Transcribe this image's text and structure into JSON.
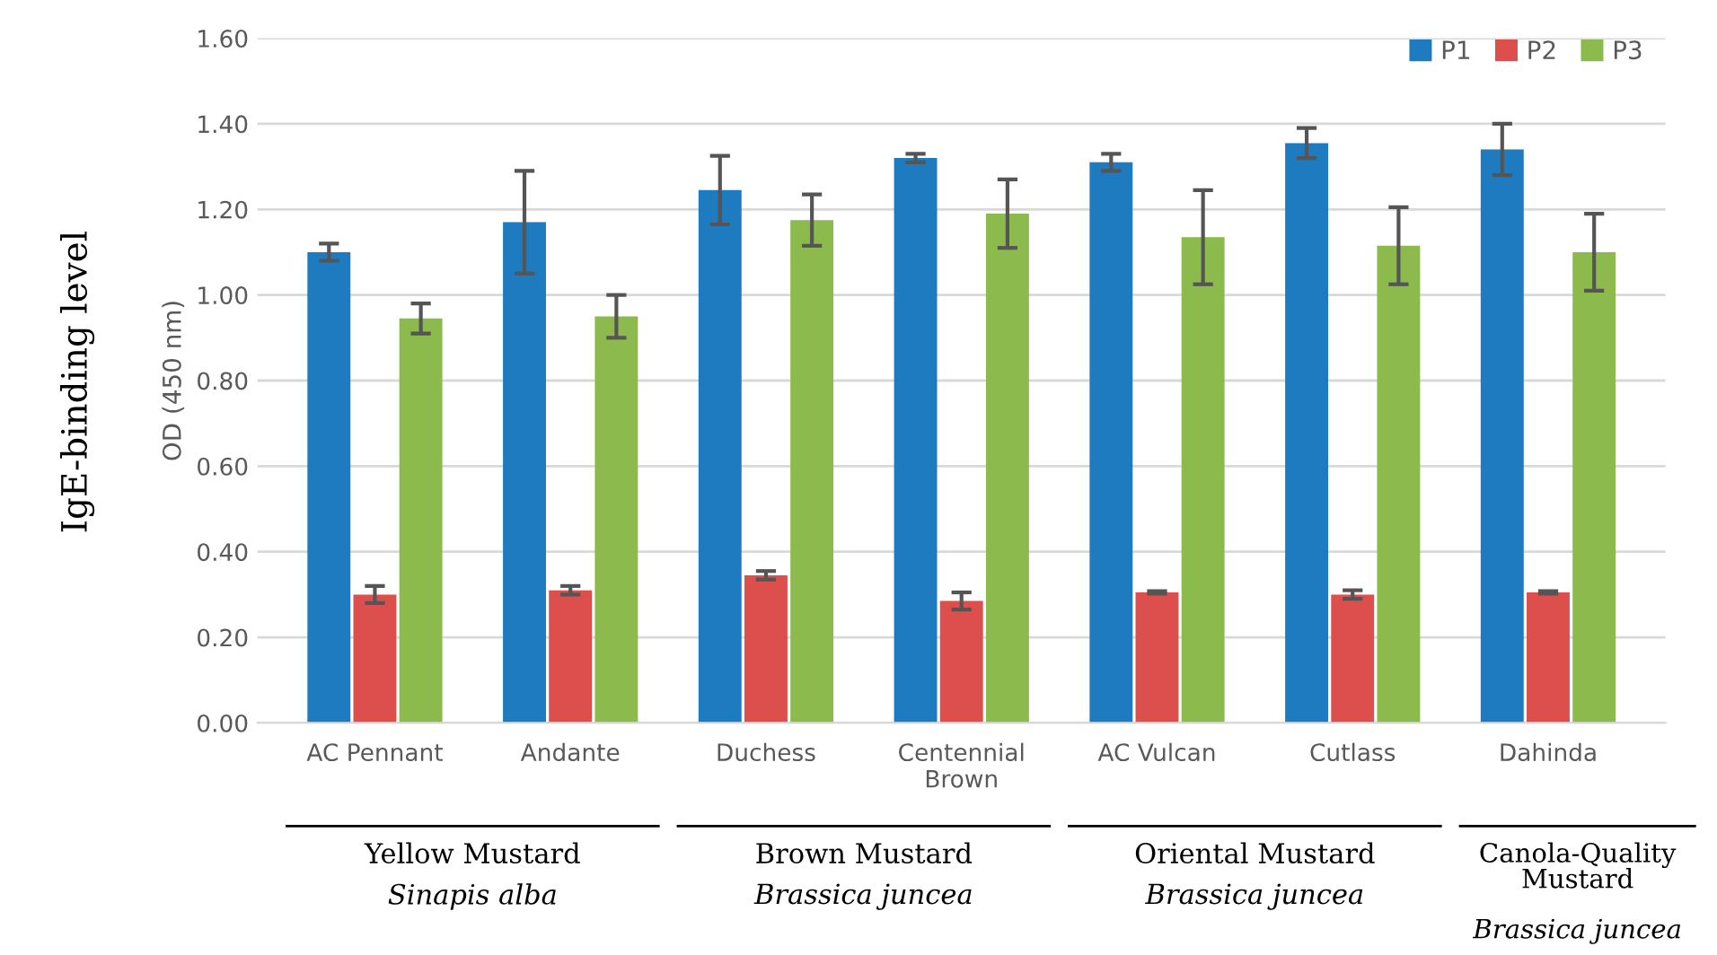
{
  "chart_data": {
    "type": "bar",
    "ylabel": "OD (450 nm)",
    "categories": [
      "AC Pennant",
      "Andante",
      "Duchess",
      "Centennial\nBrown",
      "AC Vulcan",
      "Cutlass",
      "Dahinda"
    ],
    "series": [
      {
        "name": "P1",
        "color": "#1f7bbf",
        "values": [
          1.1,
          1.17,
          1.245,
          1.32,
          1.31,
          1.355,
          1.34
        ],
        "errors": [
          0.02,
          0.12,
          0.08,
          0.01,
          0.02,
          0.035,
          0.06
        ]
      },
      {
        "name": "P2",
        "color": "#dc4f4c",
        "values": [
          0.3,
          0.31,
          0.345,
          0.285,
          0.305,
          0.3,
          0.305
        ],
        "errors": [
          0.02,
          0.01,
          0.01,
          0.02,
          0.003,
          0.01,
          0.003
        ]
      },
      {
        "name": "P3",
        "color": "#8cba4c",
        "values": [
          0.945,
          0.95,
          1.175,
          1.19,
          1.135,
          1.115,
          1.1
        ],
        "errors": [
          0.035,
          0.05,
          0.06,
          0.08,
          0.11,
          0.09,
          0.09
        ]
      }
    ],
    "ylim": [
      0,
      1.6
    ],
    "yticks": [
      {
        "value": 0,
        "label": "0.00"
      },
      {
        "value": 0.2,
        "label": "0.20"
      },
      {
        "value": 0.4,
        "label": "0.40"
      },
      {
        "value": 0.6,
        "label": "0.60"
      },
      {
        "value": 0.8,
        "label": "0.80"
      },
      {
        "value": 1.0,
        "label": "1.00"
      },
      {
        "value": 1.2,
        "label": "1.20"
      },
      {
        "value": 1.4,
        "label": "1.40"
      },
      {
        "value": 1.6,
        "label": "1.60"
      }
    ],
    "grid": "y",
    "legend": "top right",
    "annotations": [
      "IgE-binding level",
      "Yellow Mustard",
      "Sinapis alba",
      "Brown Mustard",
      "Brassica juncea",
      "Oriental Mustard",
      "Brassica juncea",
      "Canola-Quality\nMustard",
      "Brassica juncea"
    ]
  }
}
